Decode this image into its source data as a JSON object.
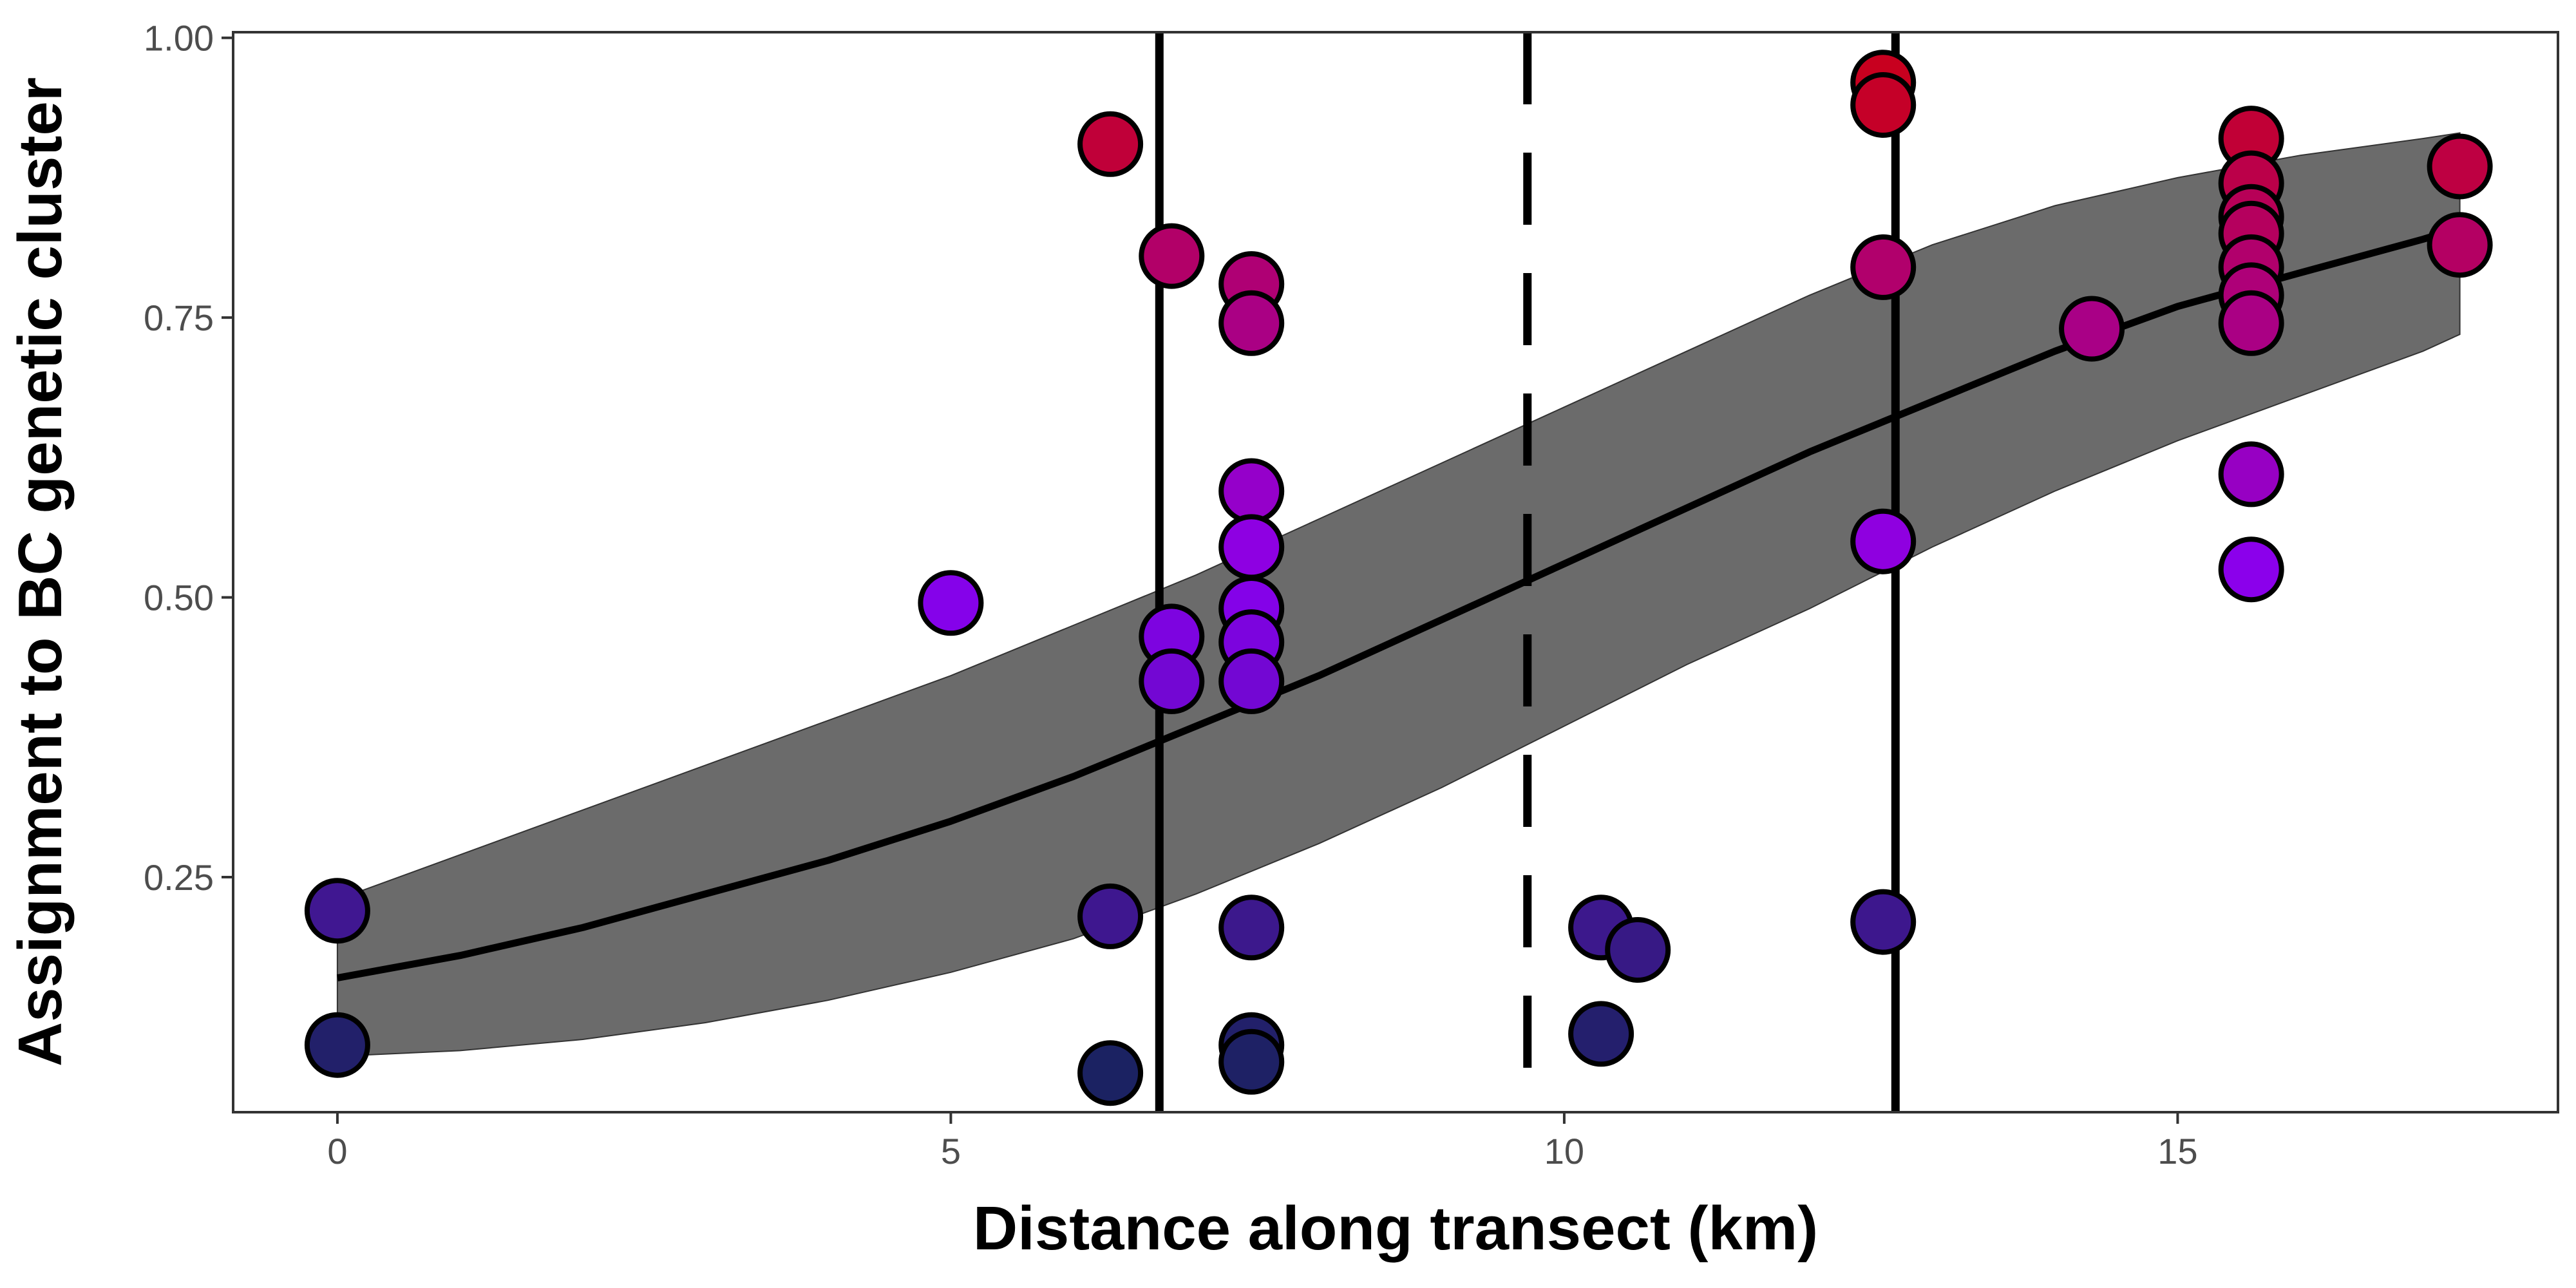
{
  "chart_data": {
    "type": "scatter",
    "xlabel": "Distance along transect (km)",
    "ylabel": "Assignment to BC genetic cluster",
    "xlim": [
      -0.85,
      18.1
    ],
    "ylim": [
      0.04,
      1.005
    ],
    "x_ticks": [
      0,
      5,
      10,
      15
    ],
    "y_ticks": [
      0.25,
      0.5,
      0.75,
      1.0
    ],
    "x_tick_labels": [
      "0",
      "5",
      "10",
      "15"
    ],
    "y_tick_labels": [
      "0.25",
      "0.50",
      "0.75",
      "1.00"
    ],
    "grid": false,
    "legend": "none",
    "color_scale": {
      "low": "#1a2260",
      "mid": "#8a00f0",
      "high": "#c8001f"
    },
    "vertical_lines": [
      {
        "x": 6.7,
        "style": "solid"
      },
      {
        "x": 9.7,
        "style": "dashed"
      },
      {
        "x": 12.7,
        "style": "solid"
      }
    ],
    "fit_line": {
      "x": [
        0,
        1,
        2,
        3,
        4,
        5,
        6,
        7,
        8,
        9,
        10,
        11,
        12,
        13,
        14,
        15,
        16,
        17,
        17.3
      ],
      "y": [
        0.16,
        0.18,
        0.205,
        0.235,
        0.265,
        0.3,
        0.34,
        0.385,
        0.43,
        0.48,
        0.53,
        0.58,
        0.63,
        0.675,
        0.72,
        0.76,
        0.79,
        0.82,
        0.83
      ],
      "lower": [
        0.09,
        0.095,
        0.105,
        0.12,
        0.14,
        0.165,
        0.195,
        0.235,
        0.28,
        0.33,
        0.385,
        0.44,
        0.49,
        0.545,
        0.595,
        0.64,
        0.68,
        0.72,
        0.735
      ],
      "upper": [
        0.23,
        0.27,
        0.31,
        0.35,
        0.39,
        0.43,
        0.475,
        0.52,
        0.57,
        0.62,
        0.67,
        0.72,
        0.77,
        0.815,
        0.85,
        0.875,
        0.895,
        0.91,
        0.915
      ]
    },
    "points": [
      {
        "x": 0,
        "y": 0.22
      },
      {
        "x": 0,
        "y": 0.1
      },
      {
        "x": 5.0,
        "y": 0.495
      },
      {
        "x": 6.3,
        "y": 0.905
      },
      {
        "x": 6.3,
        "y": 0.215
      },
      {
        "x": 6.3,
        "y": 0.075
      },
      {
        "x": 6.8,
        "y": 0.805
      },
      {
        "x": 6.8,
        "y": 0.465
      },
      {
        "x": 6.8,
        "y": 0.425
      },
      {
        "x": 7.45,
        "y": 0.78
      },
      {
        "x": 7.45,
        "y": 0.745
      },
      {
        "x": 7.45,
        "y": 0.595
      },
      {
        "x": 7.45,
        "y": 0.545
      },
      {
        "x": 7.45,
        "y": 0.49
      },
      {
        "x": 7.45,
        "y": 0.46
      },
      {
        "x": 7.45,
        "y": 0.425
      },
      {
        "x": 7.45,
        "y": 0.205
      },
      {
        "x": 7.45,
        "y": 0.1
      },
      {
        "x": 7.45,
        "y": 0.085
      },
      {
        "x": 10.3,
        "y": 0.205
      },
      {
        "x": 10.3,
        "y": 0.11
      },
      {
        "x": 10.6,
        "y": 0.185
      },
      {
        "x": 12.6,
        "y": 0.96
      },
      {
        "x": 12.6,
        "y": 0.94
      },
      {
        "x": 12.6,
        "y": 0.795
      },
      {
        "x": 12.6,
        "y": 0.55
      },
      {
        "x": 12.6,
        "y": 0.21
      },
      {
        "x": 14.3,
        "y": 0.74
      },
      {
        "x": 15.6,
        "y": 0.91
      },
      {
        "x": 15.6,
        "y": 0.87
      },
      {
        "x": 15.6,
        "y": 0.84
      },
      {
        "x": 15.6,
        "y": 0.825
      },
      {
        "x": 15.6,
        "y": 0.795
      },
      {
        "x": 15.6,
        "y": 0.77
      },
      {
        "x": 15.6,
        "y": 0.745
      },
      {
        "x": 15.6,
        "y": 0.61
      },
      {
        "x": 15.6,
        "y": 0.525
      },
      {
        "x": 17.3,
        "y": 0.885
      },
      {
        "x": 17.3,
        "y": 0.815
      }
    ]
  }
}
